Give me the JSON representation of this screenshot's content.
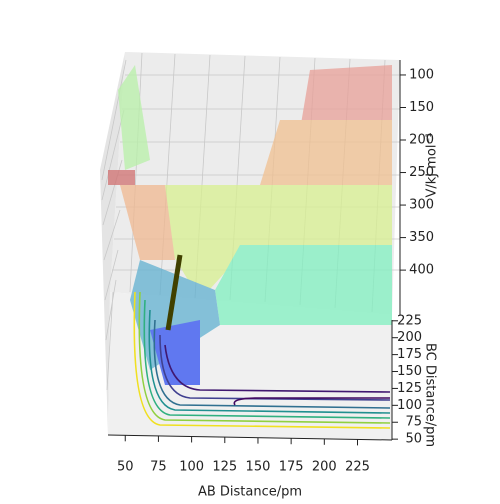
{
  "chart_data": {
    "type": "surface3d",
    "xlabel": "AB Distance/pm",
    "ylabel": "BC Distance/pm",
    "zlabel": "V/kJ mol⁻¹",
    "xlim": [
      37,
      251
    ],
    "xticks": [
      50,
      75,
      100,
      125,
      150,
      175,
      200,
      225
    ],
    "ylim": [
      31,
      238
    ],
    "yticks": [
      50,
      75,
      100,
      125,
      150,
      175,
      200,
      225
    ],
    "zlim": [
      77,
      469
    ],
    "zticks": [
      100,
      150,
      200,
      250,
      300,
      350,
      400
    ]
  }
}
